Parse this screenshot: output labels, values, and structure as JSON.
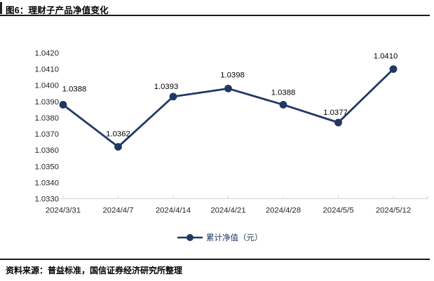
{
  "figure": {
    "title": "图6：理财子产品净值变化",
    "source": "资料来源：普益标准，国信证券经济研究所整理"
  },
  "chart_data": {
    "type": "line",
    "title": "理财子产品净值变化",
    "categories": [
      "2024/3/31",
      "2024/4/7",
      "2024/4/14",
      "2024/4/21",
      "2024/4/28",
      "2024/5/5",
      "2024/5/12"
    ],
    "series": [
      {
        "name": "累计净值（元）",
        "values": [
          1.0388,
          1.0362,
          1.0393,
          1.0398,
          1.0388,
          1.0377,
          1.041
        ]
      }
    ],
    "data_labels": [
      "1.0388",
      "1.0362",
      "1.0393",
      "1.0398",
      "1.0388",
      "1.0377",
      "1.0410"
    ],
    "yticks": [
      "1.0420",
      "1.0410",
      "1.0400",
      "1.0390",
      "1.0380",
      "1.0370",
      "1.0360",
      "1.0350",
      "1.0340",
      "1.0330"
    ],
    "ylim": [
      1.033,
      1.042
    ],
    "ytick_step": 0.001,
    "xlabel": "",
    "ylabel": "",
    "grid": false,
    "legend": {
      "position": "bottom",
      "entries": [
        "累计净值（元）"
      ]
    },
    "colors": {
      "series_line": "#1f3864",
      "marker": "#1f3864",
      "legend_text": "#1f3864",
      "axis_line": "#d9d9d9",
      "tick_label": "#262626",
      "data_label": "#000000"
    }
  }
}
